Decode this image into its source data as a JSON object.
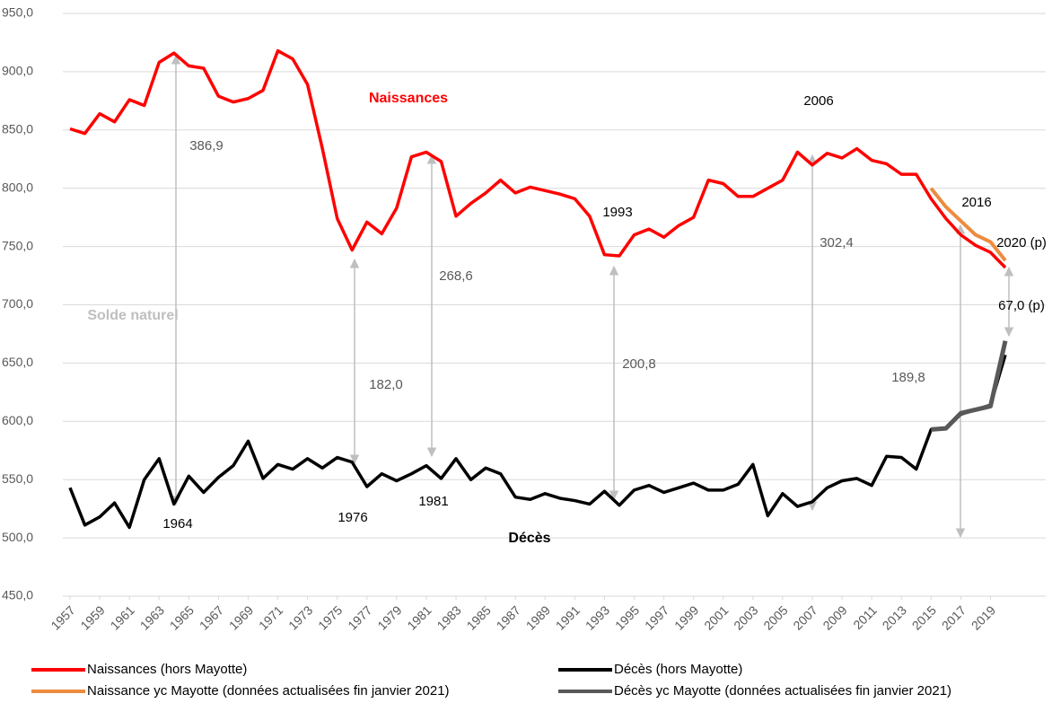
{
  "chart_data": {
    "type": "line",
    "x": [
      1957,
      1958,
      1959,
      1960,
      1961,
      1962,
      1963,
      1964,
      1965,
      1966,
      1967,
      1968,
      1969,
      1970,
      1971,
      1972,
      1973,
      1974,
      1975,
      1976,
      1977,
      1978,
      1979,
      1980,
      1981,
      1982,
      1983,
      1984,
      1985,
      1986,
      1987,
      1988,
      1989,
      1990,
      1991,
      1992,
      1993,
      1994,
      1995,
      1996,
      1997,
      1998,
      1999,
      2000,
      2001,
      2002,
      2003,
      2004,
      2005,
      2006,
      2007,
      2008,
      2009,
      2010,
      2011,
      2012,
      2013,
      2014,
      2015,
      2016,
      2017,
      2018,
      2019,
      2020
    ],
    "xlim": [
      1957,
      2020
    ],
    "xticks": [
      1957,
      1959,
      1961,
      1963,
      1965,
      1967,
      1969,
      1971,
      1973,
      1975,
      1977,
      1979,
      1981,
      1983,
      1985,
      1987,
      1989,
      1991,
      1993,
      1995,
      1997,
      1999,
      2001,
      2003,
      2005,
      2007,
      2009,
      2011,
      2013,
      2015,
      2017,
      2019
    ],
    "ylim": [
      450,
      950
    ],
    "yticks": [
      {
        "value": 450,
        "label": "450,0"
      },
      {
        "value": 500,
        "label": "500,0"
      },
      {
        "value": 550,
        "label": "550,0"
      },
      {
        "value": 600,
        "label": "600,0"
      },
      {
        "value": 650,
        "label": "650,0"
      },
      {
        "value": 700,
        "label": "700,0"
      },
      {
        "value": 750,
        "label": "750,0"
      },
      {
        "value": 800,
        "label": "800,0"
      },
      {
        "value": 850,
        "label": "850,0"
      },
      {
        "value": 900,
        "label": "900,0"
      },
      {
        "value": 950,
        "label": "950,0"
      }
    ],
    "grid": true,
    "series": [
      {
        "name": "Naissances (hors Mayotte)",
        "color": "#ff0000",
        "values": [
          851,
          847,
          864,
          857,
          876,
          871,
          908,
          916,
          905,
          903,
          879,
          874,
          877,
          884,
          918,
          911,
          889,
          834,
          774,
          747,
          771,
          761,
          783,
          827,
          831,
          823,
          776,
          787,
          796,
          807,
          796,
          801,
          798,
          795,
          791,
          776,
          743,
          742,
          760,
          765,
          758,
          768,
          775,
          807,
          804,
          793,
          793,
          800,
          807,
          831,
          820,
          830,
          826,
          834,
          824,
          821,
          812,
          812,
          791,
          774,
          760,
          751,
          745,
          732
        ]
      },
      {
        "name": "Décès (hors Mayotte)",
        "color": "#000000",
        "values": [
          543,
          511,
          518,
          530,
          509,
          550,
          568,
          529,
          553,
          539,
          552,
          562,
          583,
          551,
          563,
          559,
          568,
          560,
          569,
          565,
          544,
          555,
          549,
          555,
          562,
          551,
          568,
          550,
          560,
          555,
          535,
          533,
          538,
          534,
          532,
          529,
          540,
          528,
          541,
          545,
          539,
          543,
          547,
          541,
          541,
          546,
          563,
          519,
          538,
          527,
          531,
          543,
          549,
          551,
          545,
          570,
          569,
          559,
          593,
          594,
          606,
          610,
          614,
          657
        ]
      },
      {
        "name": "Naissance yc Mayotte (données actualisées fin janvier 2021)",
        "color": "#ed8b3f",
        "values": [
          null,
          null,
          null,
          null,
          null,
          null,
          null,
          null,
          null,
          null,
          null,
          null,
          null,
          null,
          null,
          null,
          null,
          null,
          null,
          null,
          null,
          null,
          null,
          null,
          null,
          null,
          null,
          null,
          null,
          null,
          null,
          null,
          null,
          null,
          null,
          null,
          null,
          null,
          null,
          null,
          null,
          null,
          null,
          null,
          null,
          null,
          null,
          null,
          null,
          null,
          null,
          null,
          null,
          null,
          null,
          null,
          null,
          null,
          800,
          784,
          772,
          760,
          754,
          738
        ]
      },
      {
        "name": "Décès yc Mayotte (données actualisées fin janvier 2021)",
        "color": "#595959",
        "values": [
          null,
          null,
          null,
          null,
          null,
          null,
          null,
          null,
          null,
          null,
          null,
          null,
          null,
          null,
          null,
          null,
          null,
          null,
          null,
          null,
          null,
          null,
          null,
          null,
          null,
          null,
          null,
          null,
          null,
          null,
          null,
          null,
          null,
          null,
          null,
          null,
          null,
          null,
          null,
          null,
          null,
          null,
          null,
          null,
          null,
          null,
          null,
          null,
          null,
          null,
          null,
          null,
          null,
          null,
          null,
          null,
          null,
          null,
          593,
          594,
          607,
          610,
          613,
          669
        ]
      }
    ],
    "annotations": [
      "Naissances",
      "Décès",
      "Solde naturel",
      "1964",
      "1976",
      "1981",
      "1993",
      "2006",
      "2016",
      "2020 (p)",
      "386,9",
      "182,0",
      "268,6",
      "200,8",
      "302,4",
      "189,8",
      "67,0 (p)"
    ]
  }
}
